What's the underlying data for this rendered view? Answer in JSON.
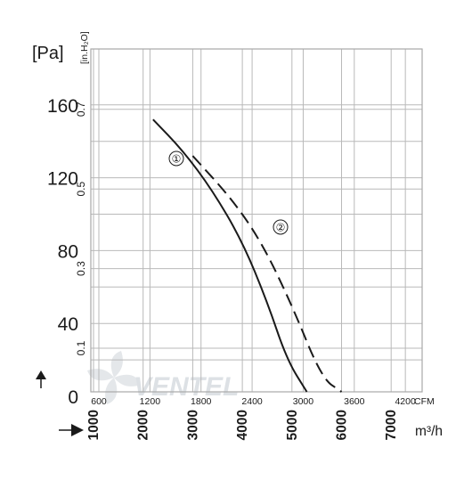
{
  "chart_data": {
    "type": "line",
    "title": "",
    "y_primary": {
      "unit": "[Pa]",
      "range": [
        0,
        180
      ],
      "ticks": [
        "0",
        "40",
        "80",
        "120",
        "160"
      ],
      "tick_values": [
        0,
        40,
        80,
        120,
        160
      ]
    },
    "y_secondary": {
      "unit": "[in.H₂O]",
      "ticks": [
        "0.1",
        "0.3",
        "0.5",
        "0.7"
      ],
      "tick_values": [
        0.1,
        0.3,
        0.5,
        0.7
      ]
    },
    "x_primary": {
      "unit": "m³/h",
      "range": [
        800,
        7800
      ],
      "ticks": [
        "1000",
        "2000",
        "3000",
        "4000",
        "5000",
        "6000",
        "7000"
      ],
      "tick_values": [
        1000,
        2000,
        3000,
        4000,
        5000,
        6000,
        7000
      ]
    },
    "x_secondary": {
      "unit": "CFM",
      "ticks": [
        "600",
        "1200",
        "1800",
        "2400",
        "3000",
        "3600",
        "4200"
      ],
      "tick_values": [
        600,
        1200,
        1800,
        2400,
        3000,
        3600,
        4200
      ]
    },
    "series": [
      {
        "name": "①",
        "style": "solid",
        "color": "#1a1a1a",
        "points": [
          [
            2200,
            152
          ],
          [
            2800,
            135
          ],
          [
            3400,
            113
          ],
          [
            4000,
            85
          ],
          [
            4500,
            52
          ],
          [
            4900,
            20
          ],
          [
            5300,
            0
          ]
        ]
      },
      {
        "name": "②",
        "style": "dashed",
        "color": "#1a1a1a",
        "points": [
          [
            3000,
            132
          ],
          [
            3800,
            108
          ],
          [
            4400,
            84
          ],
          [
            5000,
            50
          ],
          [
            5600,
            10
          ],
          [
            6000,
            -10
          ]
        ]
      }
    ],
    "grid": true,
    "legend": "inline labels on curves"
  },
  "axis_arrows": {
    "up_arrow": "↑",
    "right_arrow": "→"
  },
  "watermark": {
    "text": "VENTEL"
  }
}
